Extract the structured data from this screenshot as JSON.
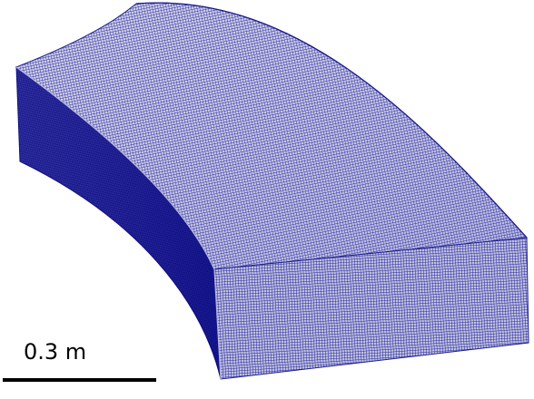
{
  "scale_bar": {
    "label": "0.3 m"
  },
  "colors": {
    "mesh_line": "#1a1a8c",
    "top_face": "#6f72c8",
    "front_face": "#5a5db8",
    "side_face": "#15159a",
    "background": "#ffffff"
  }
}
